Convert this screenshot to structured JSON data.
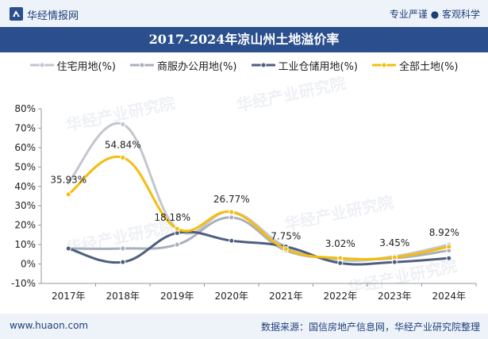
{
  "header": {
    "brand": "华经情报网",
    "tagline": "专业严谨 ● 客观科学"
  },
  "title": "2017-2024年凉山州土地溢价率",
  "footer": {
    "url": "www.huaon.com",
    "source": "数据来源：国信房地产信息网，华经产业研究院整理"
  },
  "watermark": {
    "text": "华经产业研究院",
    "url": "www.huaon.com"
  },
  "colors": {
    "header_bg": "#eef3fa",
    "title_bg": "#2a4f8c",
    "brand_text": "#1e3f7a"
  },
  "chart_data": {
    "type": "line",
    "title": "2017-2024年凉山州土地溢价率",
    "categories": [
      "2017年",
      "2018年",
      "2019年",
      "2020年",
      "2021年",
      "2022年",
      "2023年",
      "2024年"
    ],
    "y_ticks": [
      "80%",
      "70%",
      "60%",
      "50%",
      "40%",
      "30%",
      "20%",
      "10%",
      "0%",
      "-10%"
    ],
    "ylim": [
      -10,
      80
    ],
    "grid": false,
    "legend_position": "top",
    "series": [
      {
        "name": "住宅用地(%)",
        "color": "#c3c6cf",
        "values": [
          42,
          72,
          18,
          27,
          9,
          2,
          4,
          10
        ],
        "labels": false
      },
      {
        "name": "商服办公用地(%)",
        "color": "#a9b0bd",
        "values": [
          8,
          8,
          10,
          24,
          7,
          3,
          3,
          7
        ],
        "labels": false
      },
      {
        "name": "工业仓储用地(%)",
        "color": "#4e5f7e",
        "values": [
          8,
          1,
          16,
          12,
          9,
          0.5,
          1,
          3
        ],
        "labels": false
      },
      {
        "name": "全部土地(%)",
        "color": "#f5bd0c",
        "values": [
          35.93,
          54.84,
          18.18,
          26.77,
          7.75,
          3.02,
          3.45,
          8.92
        ],
        "labels": true
      }
    ],
    "data_labels": [
      "35.93%",
      "54.84%",
      "18.18%",
      "26.77%",
      "7.75%",
      "3.02%",
      "3.45%",
      "8.92%"
    ]
  }
}
